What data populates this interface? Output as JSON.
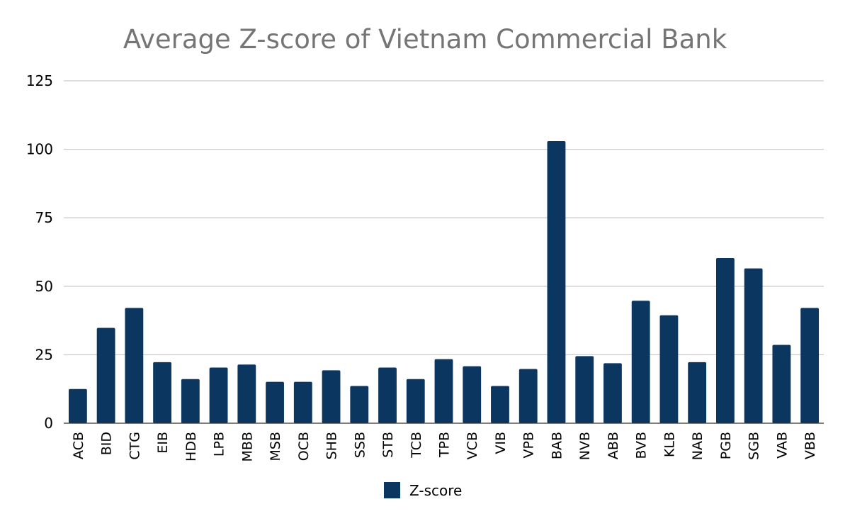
{
  "chart_data": {
    "type": "bar",
    "title": "Average Z-score of Vietnam Commercial Bank",
    "xlabel": "",
    "ylabel": "",
    "ylim": [
      0,
      125
    ],
    "yticks": [
      0,
      25,
      50,
      75,
      100,
      125
    ],
    "grid": true,
    "legend_position": "bottom",
    "categories": [
      "ACB",
      "BID",
      "CTG",
      "EIB",
      "HDB",
      "LPB",
      "MBB",
      "MSB",
      "OCB",
      "SHB",
      "SSB",
      "STB",
      "TCB",
      "TPB",
      "VCB",
      "VIB",
      "VPB",
      "BAB",
      "NVB",
      "ABB",
      "BVB",
      "KLB",
      "NAB",
      "PGB",
      "SGB",
      "VAB",
      "VBB"
    ],
    "series": [
      {
        "name": "Z-score",
        "color": "#0b3660",
        "values": [
          12.5,
          34.8,
          42.1,
          22.3,
          16.1,
          20.3,
          21.4,
          15.1,
          15.1,
          19.3,
          13.6,
          20.3,
          16.1,
          23.4,
          20.8,
          13.6,
          19.8,
          103.0,
          24.5,
          21.9,
          44.7,
          39.4,
          22.3,
          60.3,
          56.5,
          28.6,
          42.1
        ]
      }
    ]
  }
}
